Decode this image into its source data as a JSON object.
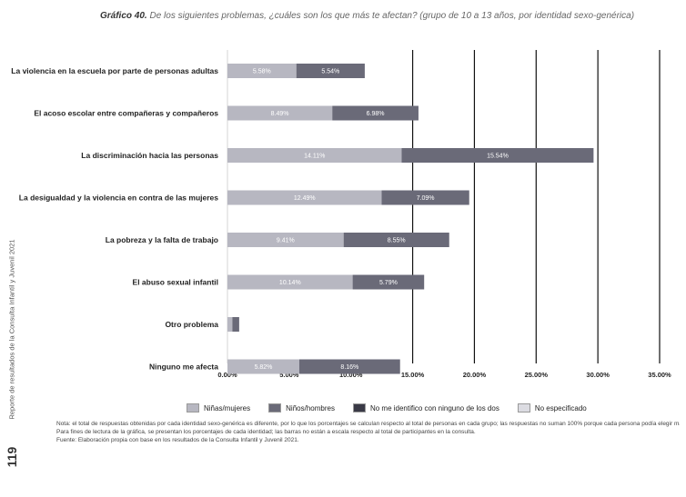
{
  "page": {
    "title_prefix": "Gráfico 40.",
    "title_text": "De los siguientes problemas, ¿cuáles son los que más te afectan? (grupo de 10 a 13 años, por identidad sexo-genérica)",
    "side_text": "Reporte de resultados de la Consulta Infantil y Juvenil 2021",
    "page_number": "119",
    "notes": [
      "Nota: el total de respuestas obtenidas por cada identidad sexo-genérica es diferente, por lo que los porcentajes se calculan respecto al total de personas en cada grupo; las respuestas no suman 100% porque cada persona podía elegir más de una opción.",
      "Para fines de lectura de la gráfica, se presentan los porcentajes de cada identidad; las barras no están a escala respecto al total de participantes en la consulta.",
      "Fuente: Elaboración propia con base en los resultados de la Consulta Infantil y Juvenil 2021."
    ]
  },
  "colors": {
    "ninas": "#b7b7c1",
    "ninos": "#6a6a78",
    "ninguno": "#3a3a46",
    "no_especificado": "#dcdce2",
    "gridline": "#111111"
  },
  "chart_data": {
    "type": "bar",
    "orientation": "horizontal",
    "stacked": true,
    "title": "Gráfico 40. De los siguientes problemas, ¿cuáles son los que más te afectan? (grupo de 10 a 13 años, por identidad sexo-genérica)",
    "categories": [
      "La violencia en la escuela por parte de personas adultas",
      "El acoso escolar entre compañeras y compañeros",
      "La discriminación hacia las personas",
      "La desigualdad y la violencia en contra de las mujeres",
      "La pobreza y la falta de trabajo",
      "El abuso sexual infantil",
      "Otro problema",
      "Ninguno me afecta"
    ],
    "series": [
      {
        "name": "Niñas/mujeres",
        "values": [
          5.58,
          8.49,
          14.11,
          12.49,
          9.41,
          10.14,
          0.4,
          5.82
        ]
      },
      {
        "name": "Niños/hombres",
        "values": [
          5.54,
          6.98,
          15.54,
          7.09,
          8.55,
          5.79,
          0.55,
          8.16
        ]
      }
    ],
    "data_labels": [
      [
        "5.58%",
        "5.54%"
      ],
      [
        "8.49%",
        "6.98%"
      ],
      [
        "14.11%",
        "15.54%"
      ],
      [
        "12.49%",
        "7.09%"
      ],
      [
        "9.41%",
        "8.55%"
      ],
      [
        "10.14%",
        "5.79%"
      ],
      [
        "",
        ""
      ],
      [
        "5.82%",
        "8.16%"
      ]
    ],
    "legend": [
      {
        "name": "Niñas/mujeres",
        "color_key": "ninas"
      },
      {
        "name": "Niños/hombres",
        "color_key": "ninos"
      },
      {
        "name": "No me identifico con ninguno de los dos",
        "color_key": "ninguno"
      },
      {
        "name": "No especificado",
        "color_key": "no_especificado"
      }
    ],
    "x_ticks": [
      "0.00%",
      "5.00%",
      "10.00%",
      "15.00%",
      "20.00%",
      "25.00%",
      "30.00%",
      "35.00%"
    ],
    "xlim": [
      0,
      35
    ],
    "grid": "vertical lines at 15, 20, 25, 30, 35",
    "legend_position": "bottom"
  }
}
